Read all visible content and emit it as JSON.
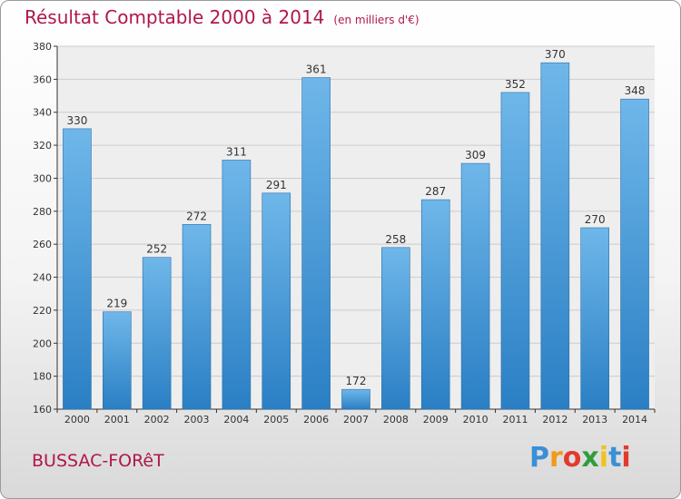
{
  "header": {
    "title": "Résultat Comptable 2000 à 2014",
    "subtitle": "(en milliers d'€)"
  },
  "footer": {
    "commune": "BUSSAC-FORêT",
    "logo": {
      "letters": [
        "P",
        "r",
        "o",
        "x",
        "i",
        "t",
        "i"
      ],
      "colors": [
        "#3a8fd6",
        "#f29a1a",
        "#e23b2e",
        "#2f9e3b",
        "#f2c21a",
        "#3a8fd6",
        "#e23b2e"
      ]
    }
  },
  "colors": {
    "bar_top": "#6fb7ea",
    "bar_bottom": "#2a7fc4",
    "bar_edge": "#2a6fa8",
    "grid": "#cccccc",
    "plot_bg": "#eeeeee",
    "axis": "#333333"
  },
  "chart_data": {
    "type": "bar",
    "categories": [
      "2000",
      "2001",
      "2002",
      "2003",
      "2004",
      "2005",
      "2006",
      "2007",
      "2008",
      "2009",
      "2010",
      "2011",
      "2012",
      "2013",
      "2014"
    ],
    "values": [
      330,
      219,
      252,
      272,
      311,
      291,
      361,
      172,
      258,
      287,
      309,
      352,
      370,
      270,
      348
    ],
    "title": "Résultat Comptable 2000 à 2014",
    "xlabel": "",
    "ylabel": "",
    "ylim": [
      160,
      380
    ],
    "yticks": [
      160,
      180,
      200,
      220,
      240,
      260,
      280,
      300,
      320,
      340,
      360,
      380
    ],
    "grid": true,
    "legend": "none"
  }
}
